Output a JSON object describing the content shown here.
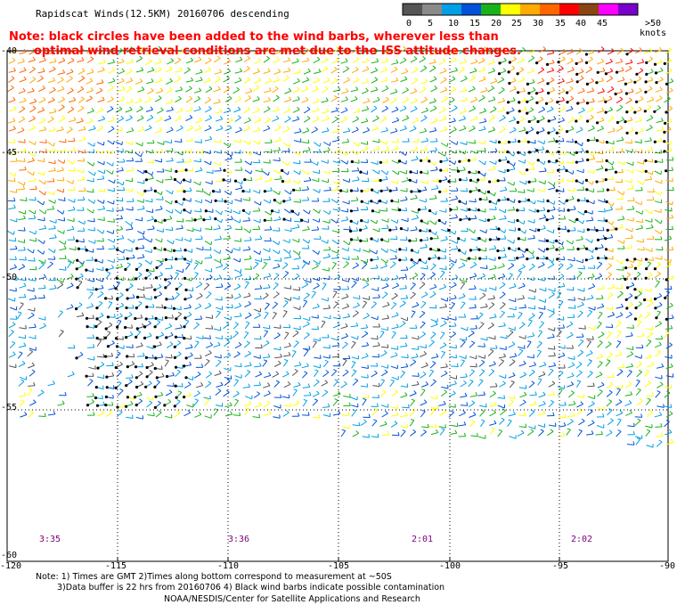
{
  "title": "Rapidscat Winds(12.5KM) 20160706 descending",
  "note_line1": "Note: black circles have been added to the wind barbs, wherever less than",
  "note_line2": "optimal wind retrieval conditions are met due to the ISS attitude changes.",
  "colorbar": {
    "labels": [
      "0",
      "5",
      "10",
      "15",
      "20",
      "25",
      "30",
      "35",
      "40",
      "45",
      ">50 knots"
    ],
    "colors": [
      "#555555",
      "#8a8a8a",
      "#009fe6",
      "#0052d9",
      "#19b319",
      "#ffff00",
      "#ffaa00",
      "#ff6600",
      "#ff0000",
      "#8b4513",
      "#ff00ff",
      "#7a00cc"
    ]
  },
  "lat_labels": [
    "-40",
    "-45",
    "-50",
    "-55",
    "-60"
  ],
  "lon_labels": [
    "-120",
    "-115",
    "-110",
    "-105",
    "-100",
    "-95",
    "-90"
  ],
  "times": [
    "3:35",
    "3:36",
    "2:01",
    "2:02"
  ],
  "footer_line1": "Note: 1) Times are GMT 2)Times along bottom correspond to measurement at ~50S",
  "footer_line2": "3)Data buffer is 22 hrs from 20160706 4) Black wind barbs indicate possible contamination",
  "footer_line3": "NOAA/NESDIS/Center for Satellite Applications and Research"
}
